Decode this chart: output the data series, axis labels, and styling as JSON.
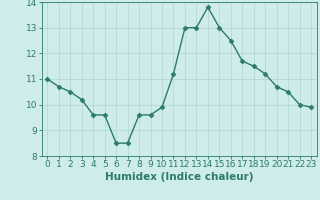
{
  "x": [
    0,
    1,
    2,
    3,
    4,
    5,
    6,
    7,
    8,
    9,
    10,
    11,
    12,
    13,
    14,
    15,
    16,
    17,
    18,
    19,
    20,
    21,
    22,
    23
  ],
  "y": [
    11.0,
    10.7,
    10.5,
    10.2,
    9.6,
    9.6,
    8.5,
    8.5,
    9.6,
    9.6,
    9.9,
    11.2,
    13.0,
    13.0,
    13.8,
    13.0,
    12.5,
    11.7,
    11.5,
    11.2,
    10.7,
    10.5,
    10.0,
    9.9
  ],
  "line_color": "#2d7a6e",
  "marker": "D",
  "marker_size": 2.5,
  "bg_color": "#ceecea",
  "grid_color": "#b8d8d5",
  "xlabel": "Humidex (Indice chaleur)",
  "ylim": [
    8,
    14
  ],
  "xlim_min": -0.5,
  "xlim_max": 23.5,
  "yticks": [
    8,
    9,
    10,
    11,
    12,
    13,
    14
  ],
  "xticks": [
    0,
    1,
    2,
    3,
    4,
    5,
    6,
    7,
    8,
    9,
    10,
    11,
    12,
    13,
    14,
    15,
    16,
    17,
    18,
    19,
    20,
    21,
    22,
    23
  ],
  "tick_color": "#2d7a6e",
  "label_color": "#2d7a6e",
  "xlabel_fontsize": 7.5,
  "tick_fontsize": 6.5,
  "linewidth": 1.0
}
